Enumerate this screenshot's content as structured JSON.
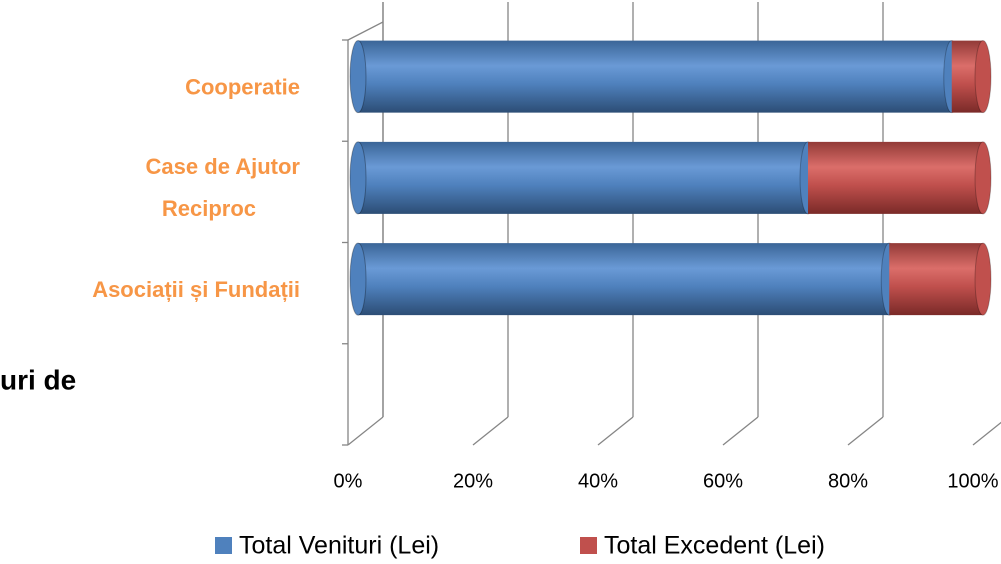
{
  "chart_data": {
    "type": "bar",
    "orientation": "horizontal",
    "stacked": true,
    "fragment_text": "uri de",
    "categories": [
      null,
      "Asociații și Fundații",
      "Case de Ajutor Reciproc",
      "Cooperatie"
    ],
    "series": [
      {
        "name": "Total Venituri (Lei)",
        "color": "#4f81bd",
        "values": [
          null,
          85,
          72,
          95
        ]
      },
      {
        "name": "Total Excedent (Lei)",
        "color": "#c0504d",
        "values": [
          null,
          15,
          28,
          5
        ]
      }
    ],
    "xlim": [
      0,
      100
    ],
    "xticks": [
      {
        "value": 0,
        "label": "0%"
      },
      {
        "value": 20,
        "label": "20%"
      },
      {
        "value": 40,
        "label": "40%"
      },
      {
        "value": 60,
        "label": "60%"
      },
      {
        "value": 80,
        "label": "80%"
      },
      {
        "value": 100,
        "label": "100%"
      }
    ],
    "grid": true,
    "legend": "bottom"
  }
}
